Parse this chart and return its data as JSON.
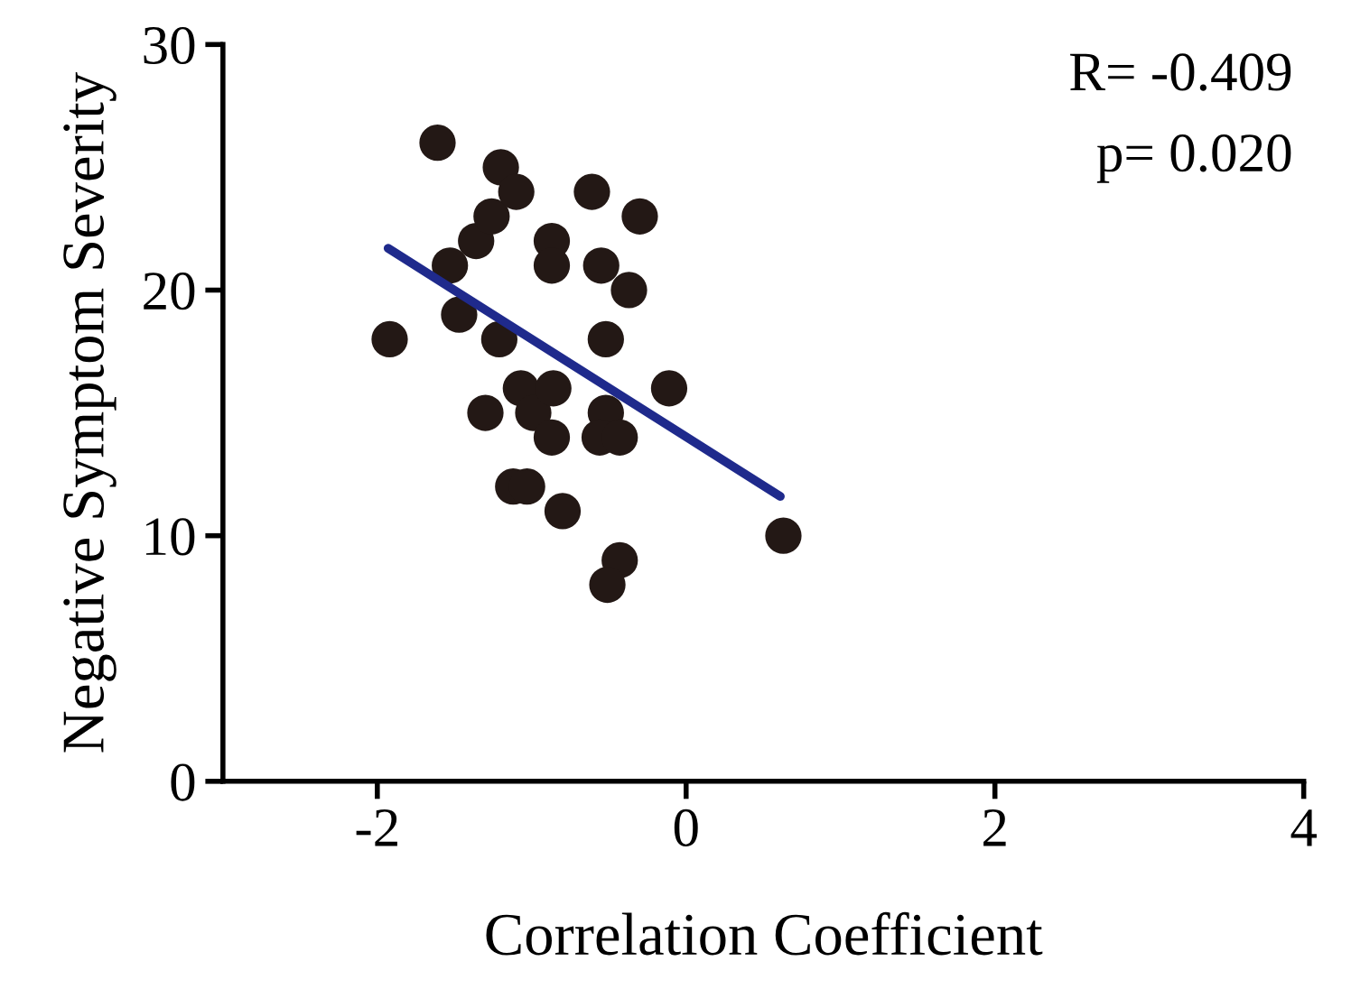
{
  "chart_data": {
    "type": "scatter",
    "xlabel": "Correlation Coefficient",
    "ylabel": "Negative Symptom Severity",
    "annotations": [
      "R= -0.409",
      "p= 0.020"
    ],
    "xlim": [
      -3,
      4
    ],
    "xticks": [
      -2,
      0,
      2,
      4
    ],
    "ylim": [
      0,
      30
    ],
    "yticks": [
      0,
      10,
      20,
      30
    ],
    "grid": false,
    "marker": "circle",
    "series": [
      {
        "color": "#231815",
        "x": [
          -1.61,
          -1.53,
          -1.47,
          -1.92,
          -1.36,
          -1.26,
          -1.2,
          -1.1,
          -1.21,
          -1.3,
          -1.07,
          -0.99,
          -0.86,
          -0.87,
          -1.12,
          -1.03,
          -0.8,
          -0.87,
          -0.87,
          -0.61,
          -0.55,
          -0.37,
          -0.3,
          -0.52,
          -0.52,
          -0.56,
          -0.43,
          -0.11,
          -0.43,
          -0.51,
          0.63
        ],
        "values": [
          26,
          21,
          19,
          18,
          22,
          23,
          25,
          24,
          18,
          15,
          16,
          15,
          16,
          14,
          12,
          12,
          11,
          22,
          21,
          24,
          21,
          20,
          23,
          18,
          15,
          14,
          14,
          16,
          9,
          8,
          10
        ]
      },
      {
        "type": "line",
        "color": "#1f2a8c",
        "x": [
          -1.93,
          0.61
        ],
        "values": [
          21.7,
          11.6
        ],
        "marker": "none",
        "line_style": "solid"
      }
    ]
  }
}
